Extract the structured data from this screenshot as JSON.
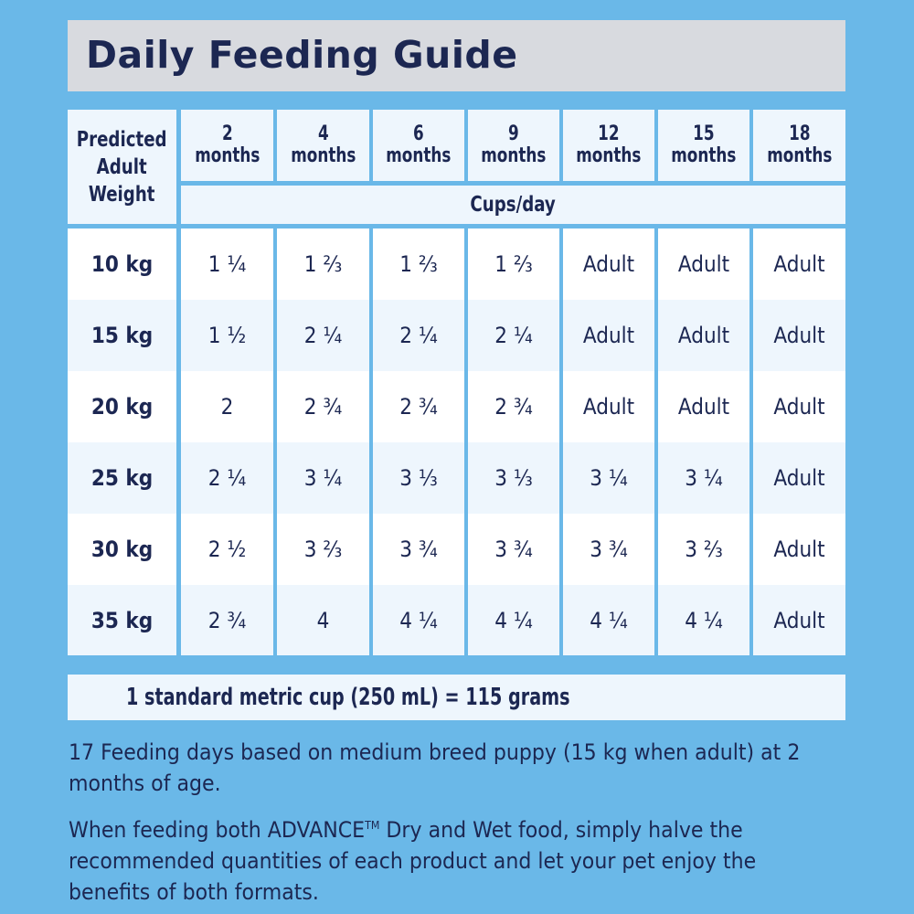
{
  "title": "Daily Feeding Guide",
  "table": {
    "weight_header": [
      "Predicted",
      "Adult",
      "Weight"
    ],
    "unit_header": "Cups/day",
    "ages": [
      {
        "num": "2",
        "unit": "months"
      },
      {
        "num": "4",
        "unit": "months"
      },
      {
        "num": "6",
        "unit": "months"
      },
      {
        "num": "9",
        "unit": "months"
      },
      {
        "num": "12",
        "unit": "months"
      },
      {
        "num": "15",
        "unit": "months"
      },
      {
        "num": "18",
        "unit": "months"
      }
    ],
    "rows": [
      {
        "weight": "10 kg",
        "values": [
          "1 ¼",
          "1 ⅔",
          "1 ⅔",
          "1 ⅔",
          "Adult",
          "Adult",
          "Adult"
        ]
      },
      {
        "weight": "15 kg",
        "values": [
          "1 ½",
          "2 ¼",
          "2 ¼",
          "2 ¼",
          "Adult",
          "Adult",
          "Adult"
        ]
      },
      {
        "weight": "20 kg",
        "values": [
          "2",
          "2 ¾",
          "2 ¾",
          "2 ¾",
          "Adult",
          "Adult",
          "Adult"
        ]
      },
      {
        "weight": "25 kg",
        "values": [
          "2 ¼",
          "3 ¼",
          "3 ⅓",
          "3 ⅓",
          "3 ¼",
          "3 ¼",
          "Adult"
        ]
      },
      {
        "weight": "30 kg",
        "values": [
          "2 ½",
          "3 ⅔",
          "3 ¾",
          "3 ¾",
          "3 ¾",
          "3 ⅔",
          "Adult"
        ]
      },
      {
        "weight": "35 kg",
        "values": [
          "2 ¾",
          "4",
          "4 ¼",
          "4 ¼",
          "4 ¼",
          "4 ¼",
          "Adult"
        ]
      }
    ]
  },
  "cup_note": "1 standard metric cup (250 mL) = 115 grams",
  "footnote1": "17 Feeding days based on medium breed puppy (15 kg when adult) at 2 months of age.",
  "footnote2_a": "When feeding both ADVANCE",
  "footnote2_tm": "TM",
  "footnote2_b": " Dry and Wet food, simply halve the recommended quantities of each product and let your pet enjoy the benefits of both formats.",
  "colors": {
    "background": "#6ab8e8",
    "text": "#1c2752",
    "title_bar": "#d8dadf",
    "cell_light": "#eef6fd"
  }
}
